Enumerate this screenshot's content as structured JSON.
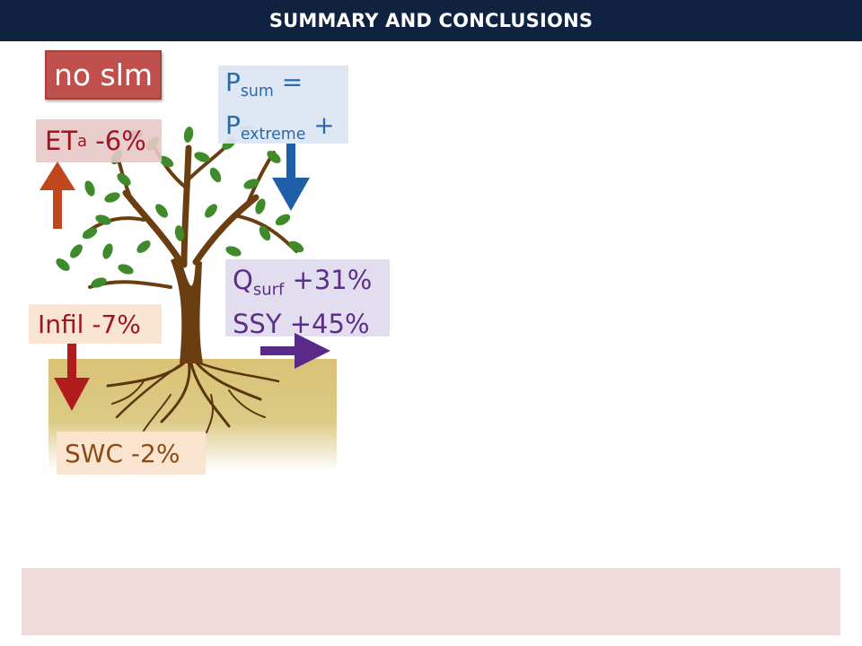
{
  "header": {
    "title": "SUMMARY AND CONCLUSIONS"
  },
  "diagram": {
    "scenario_label": "no slm",
    "eta": {
      "symbol": "ET",
      "subscript": "a",
      "change": "-6%"
    },
    "precip": {
      "line1_symbol": "P",
      "line1_subscript": "sum",
      "line1_suffix": "=",
      "line2_symbol": "P",
      "line2_subscript": "extreme",
      "line2_suffix": "+"
    },
    "qsurf": {
      "symbol": "Q",
      "subscript": "surf",
      "change": "+31%"
    },
    "ssy": {
      "text": "SSY +45%"
    },
    "infil": {
      "text": "Infil -7%"
    },
    "swc": {
      "text": "SWC -2%"
    }
  },
  "colors": {
    "header_bg": "#0f2340",
    "scenario_bg": "#c0504d",
    "eta_arrow": "#c0461e",
    "precip_arrow": "#1f5fa8",
    "runoff_arrow": "#5a2a8a",
    "infil_arrow": "#b01c1c",
    "footer_bg": "#f2dcdb"
  },
  "icons": {
    "tree": "tree-illustration",
    "up_arrow": "arrow-up-icon",
    "down_arrow": "arrow-down-icon",
    "right_arrow": "arrow-right-icon"
  }
}
